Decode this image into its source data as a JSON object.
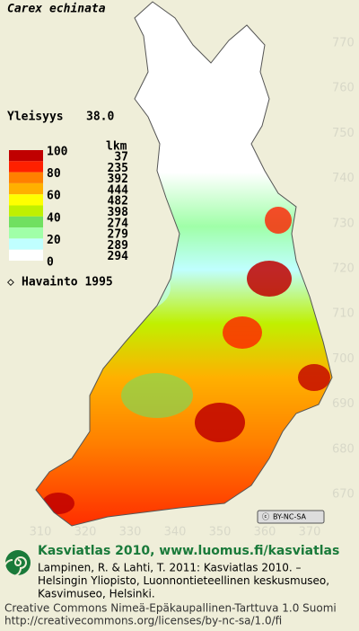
{
  "title": "Carex echinata",
  "frequency": {
    "label": "Yleisyys",
    "value": "38.0"
  },
  "legend": {
    "percent_labels": [
      "100",
      "80",
      "60",
      "40",
      "20",
      "0"
    ],
    "count_label": "lkm",
    "counts": [
      "37",
      "235",
      "392",
      "444",
      "482",
      "398",
      "274",
      "279",
      "289",
      "294"
    ],
    "colors": [
      "#c00000",
      "#ff2000",
      "#ff8000",
      "#ffb000",
      "#ffff00",
      "#c0f000",
      "#70e060",
      "#a0ffa8",
      "#c0ffff",
      "#ffffff"
    ]
  },
  "observation_note": "Havainto 1995",
  "grid": {
    "northing": [
      "770",
      "760",
      "750",
      "740",
      "730",
      "720",
      "710",
      "700",
      "690",
      "680",
      "670"
    ],
    "easting": [
      "310",
      "320",
      "330",
      "340",
      "350",
      "360",
      "370"
    ]
  },
  "license_badge": "BY-NC-SA",
  "footer": {
    "heading": "Kasviatlas 2010, www.luomus.fi/kasviatlas",
    "citation": [
      "Lampinen, R. & Lahti, T. 2011: Kasviatlas 2010. –",
      "Helsingin Yliopisto, Luonnontieteellinen keskusmuseo,",
      "Kasvimuseo, Helsinki."
    ],
    "license": [
      "Creative Commons Nimeä-Epäkaupallinen-Tarttuva 1.0 Suomi",
      "http://creativecommons.org/licenses/by-nc-sa/1.0/fi"
    ]
  }
}
